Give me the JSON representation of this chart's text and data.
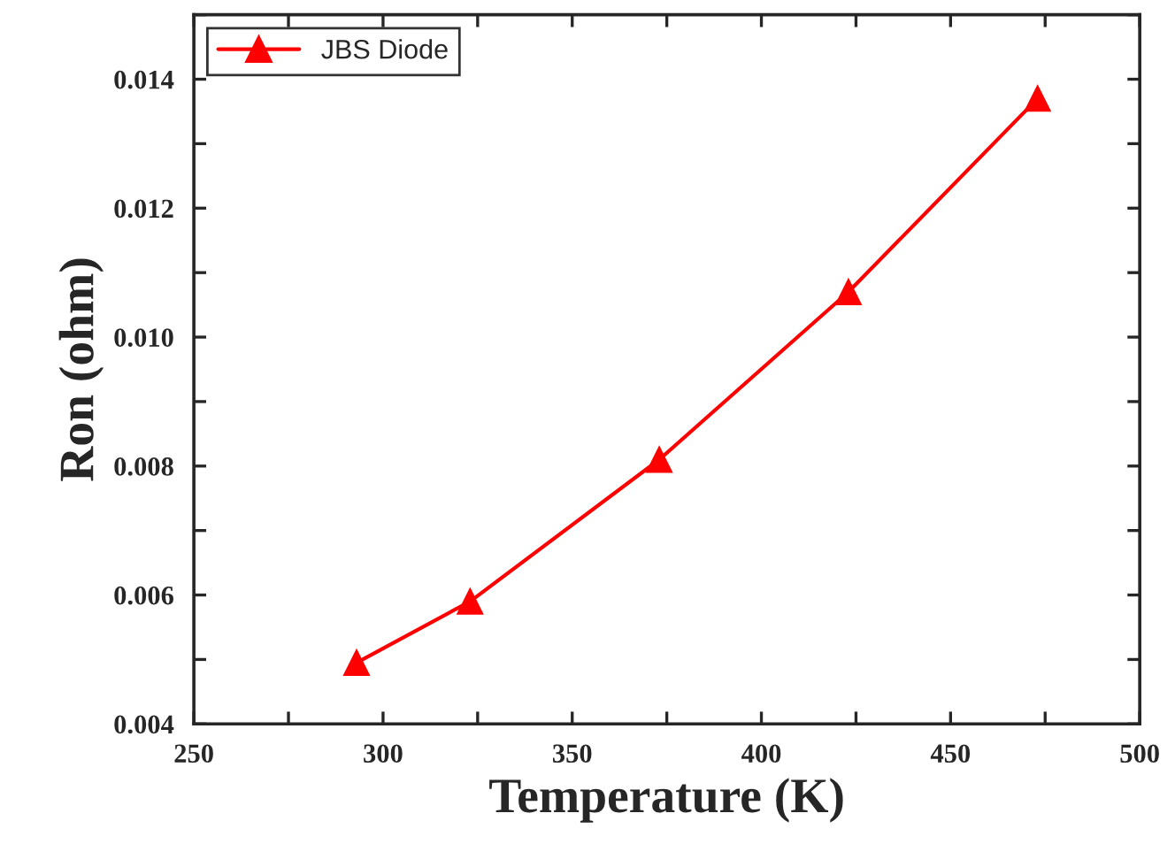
{
  "chart_data": {
    "type": "line",
    "xlabel": "Temperature (K)",
    "ylabel": "Ron (ohm)",
    "x": [
      293,
      323,
      373,
      423,
      473
    ],
    "series": [
      {
        "name": "JBS Diode",
        "color": "#ff0000",
        "values": [
          0.00495,
          0.0059,
          0.0081,
          0.0107,
          0.0137
        ]
      }
    ],
    "xlim": [
      250,
      500
    ],
    "xticks": [
      250,
      {
        "value": 275,
        "label": null
      },
      300,
      {
        "value": 325,
        "label": null
      },
      350,
      {
        "value": 375,
        "label": null
      },
      400,
      {
        "value": 425,
        "label": null
      },
      450,
      {
        "value": 475,
        "label": null
      },
      500
    ],
    "ylim": [
      0.004,
      0.015
    ],
    "yticks": [
      0.004,
      {
        "value": 0.005,
        "label": null
      },
      0.006,
      {
        "value": 0.007,
        "label": null
      },
      0.008,
      {
        "value": 0.009,
        "label": null
      },
      {
        "value": 0.01,
        "label": "0.010"
      },
      {
        "value": 0.011,
        "label": null
      },
      0.012,
      {
        "value": 0.013,
        "label": null
      },
      0.014,
      {
        "value": 0.015,
        "label": null
      }
    ],
    "marker": "triangle",
    "line_style": "solid",
    "grid": false,
    "legend": "top left"
  }
}
